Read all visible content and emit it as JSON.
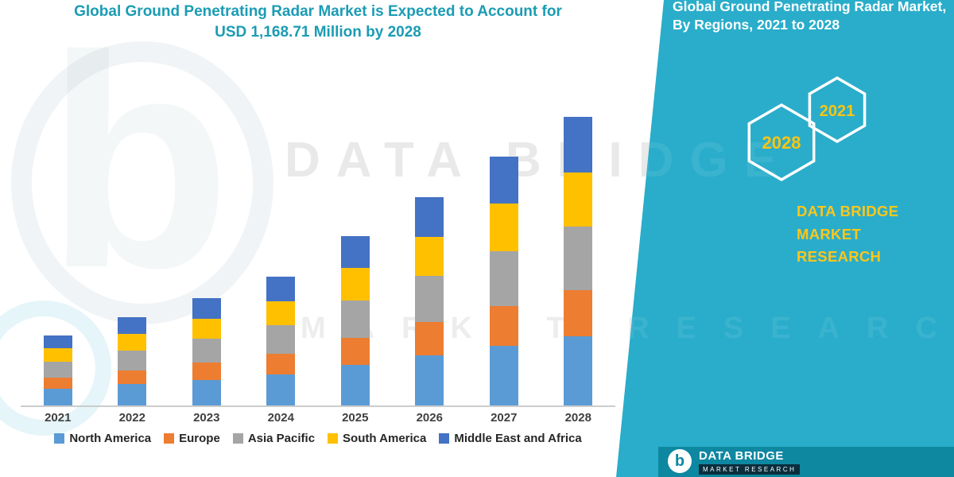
{
  "page": {
    "accent_teal": "#2aadca",
    "accent_dark_teal": "#0e87a0",
    "accent_yellow": "#ffc61a",
    "title_teal": "#1b9cb4"
  },
  "title": {
    "line1": "Global Ground Penetrating Radar Market is Expected to Account for",
    "line2": "USD 1,168.71 Million by 2028"
  },
  "side_panel": {
    "heading": "Global Ground Penetrating Radar Market, By Regions, 2021 to 2028",
    "hex_years": [
      "2028",
      "2021"
    ],
    "brand_line1": "DATA BRIDGE MARKET",
    "brand_line2": "RESEARCH"
  },
  "watermark": {
    "line1": "DATA BRIDGE",
    "line2": "MARKET RESEARCH"
  },
  "footer": {
    "logo_letter": "b",
    "brand": "DATA BRIDGE",
    "tagline": "MARKET RESEARCH"
  },
  "chart_data": {
    "type": "bar",
    "stacked": true,
    "title": "Global Ground Penetrating Radar Market is Expected to Account for USD 1,168.71 Million by 2028",
    "unit": "USD Million",
    "categories": [
      "2021",
      "2022",
      "2023",
      "2024",
      "2025",
      "2026",
      "2027",
      "2028"
    ],
    "series": [
      {
        "name": "North America",
        "color": "#5b9bd5",
        "values": [
          68,
          86,
          104,
          125,
          165,
          203,
          242,
          280
        ]
      },
      {
        "name": "Europe",
        "color": "#ed7d31",
        "values": [
          46,
          57,
          70,
          84,
          110,
          135,
          162,
          187
        ]
      },
      {
        "name": "Asia Pacific",
        "color": "#a5a5a5",
        "values": [
          63,
          79,
          96,
          115,
          151,
          186,
          222,
          257
        ]
      },
      {
        "name": "South America",
        "color": "#ffc000",
        "values": [
          54,
          68,
          83,
          99,
          131,
          160,
          192,
          222
        ]
      },
      {
        "name": "Middle East and Africa",
        "color": "#4472c4",
        "values": [
          54,
          67,
          82,
          99,
          131,
          160,
          192,
          222.71
        ]
      }
    ],
    "totals": [
      285,
      357,
      435,
      522,
      688,
      844,
      1010,
      1168.71
    ],
    "ylim": [
      0,
      1270
    ],
    "grid": false,
    "legend_position": "bottom"
  }
}
